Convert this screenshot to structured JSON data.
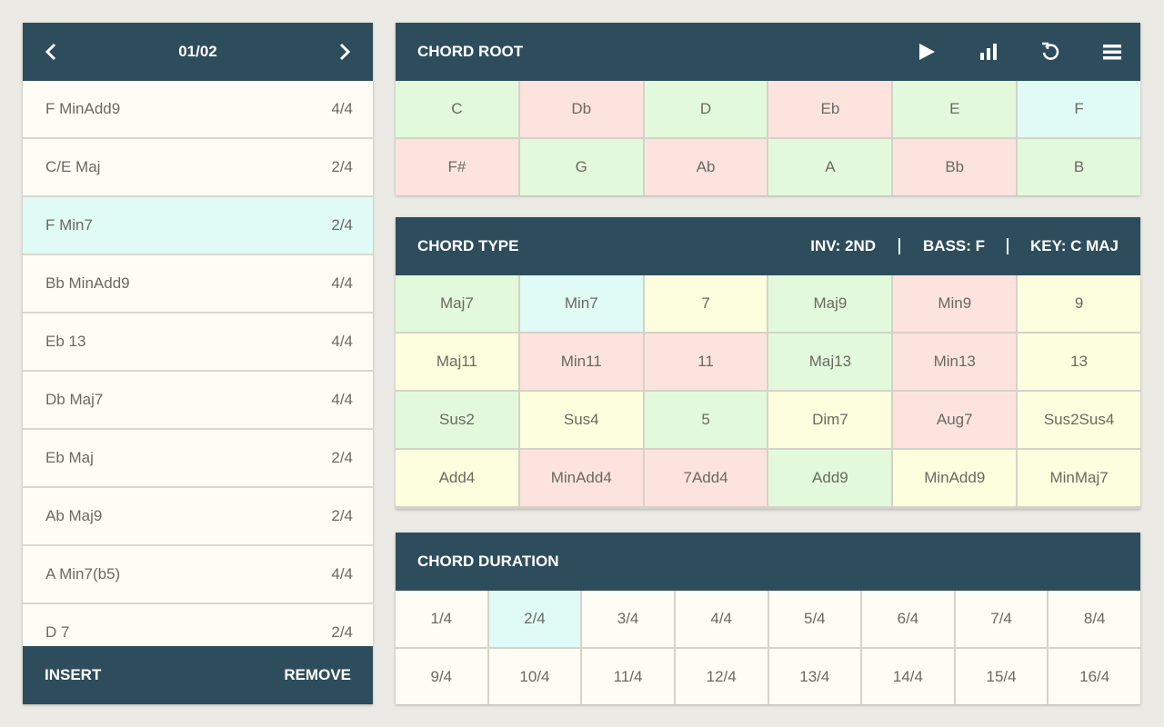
{
  "list": {
    "page": "01/02",
    "items": [
      {
        "name": "F MinAdd9",
        "duration": "4/4"
      },
      {
        "name": "C/E Maj",
        "duration": "2/4"
      },
      {
        "name": "F Min7",
        "duration": "2/4"
      },
      {
        "name": "Bb MinAdd9",
        "duration": "4/4"
      },
      {
        "name": "Eb 13",
        "duration": "4/4"
      },
      {
        "name": "Db Maj7",
        "duration": "4/4"
      },
      {
        "name": "Eb Maj",
        "duration": "2/4"
      },
      {
        "name": "Ab Maj9",
        "duration": "2/4"
      },
      {
        "name": "A Min7(b5)",
        "duration": "4/4"
      },
      {
        "name": "D 7",
        "duration": "2/4"
      }
    ],
    "selected": 2,
    "selected_color": "#e0faf5",
    "insert": "INSERT",
    "remove": "REMOVE"
  },
  "chord_root": {
    "title": "CHORD ROOT",
    "cells": [
      {
        "label": "C",
        "color": "#e2fadb"
      },
      {
        "label": "Db",
        "color": "#fde3de"
      },
      {
        "label": "D",
        "color": "#e2fadb"
      },
      {
        "label": "Eb",
        "color": "#fde3de"
      },
      {
        "label": "E",
        "color": "#e2fadb"
      },
      {
        "label": "F",
        "color": "#e0faf5"
      },
      {
        "label": "F#",
        "color": "#fde3de"
      },
      {
        "label": "G",
        "color": "#e2fadb"
      },
      {
        "label": "Ab",
        "color": "#fde3de"
      },
      {
        "label": "A",
        "color": "#e2fadb"
      },
      {
        "label": "Bb",
        "color": "#fde3de"
      },
      {
        "label": "B",
        "color": "#e2fadb"
      }
    ]
  },
  "chord_type": {
    "title": "CHORD TYPE",
    "inversion": "INV: 2ND",
    "bass": "BASS: F",
    "key": "KEY: C MAJ",
    "cells": [
      {
        "label": "Maj7",
        "color": "#e2fadb"
      },
      {
        "label": "Min7",
        "color": "#e0faf5"
      },
      {
        "label": "7",
        "color": "#fdfede"
      },
      {
        "label": "Maj9",
        "color": "#e2fadb"
      },
      {
        "label": "Min9",
        "color": "#fde3de"
      },
      {
        "label": "9",
        "color": "#fdfede"
      },
      {
        "label": "Maj11",
        "color": "#fdfede"
      },
      {
        "label": "Min11",
        "color": "#fde3de"
      },
      {
        "label": "11",
        "color": "#fde3de"
      },
      {
        "label": "Maj13",
        "color": "#e2fadb"
      },
      {
        "label": "Min13",
        "color": "#fde3de"
      },
      {
        "label": "13",
        "color": "#fdfede"
      },
      {
        "label": "Sus2",
        "color": "#e2fadb"
      },
      {
        "label": "Sus4",
        "color": "#fdfede"
      },
      {
        "label": "5",
        "color": "#e2fadb"
      },
      {
        "label": "Dim7",
        "color": "#fdfede"
      },
      {
        "label": "Aug7",
        "color": "#fde3de"
      },
      {
        "label": "Sus2Sus4",
        "color": "#fdfede"
      },
      {
        "label": "Add4",
        "color": "#fdfede"
      },
      {
        "label": "MinAdd4",
        "color": "#fde3de"
      },
      {
        "label": "7Add4",
        "color": "#fde3de"
      },
      {
        "label": "Add9",
        "color": "#e2fadb"
      },
      {
        "label": "MinAdd9",
        "color": "#fdfede"
      },
      {
        "label": "MinMaj7",
        "color": "#fdfede"
      }
    ]
  },
  "chord_duration": {
    "title": "CHORD DURATION",
    "cells": [
      "1/4",
      "2/4",
      "3/4",
      "4/4",
      "5/4",
      "6/4",
      "7/4",
      "8/4",
      "9/4",
      "10/4",
      "11/4",
      "12/4",
      "13/4",
      "14/4",
      "15/4",
      "16/4"
    ],
    "selected": 1,
    "selected_color": "#e0faf5"
  }
}
